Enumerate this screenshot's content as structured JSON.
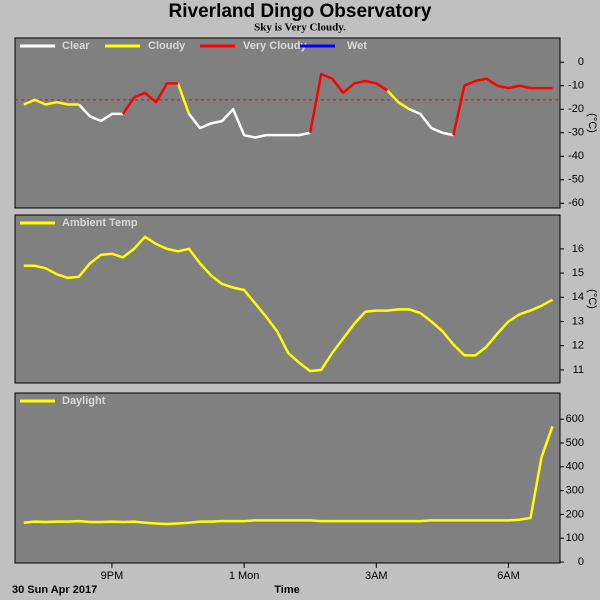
{
  "header": {
    "title": "Riverland Dingo Observatory",
    "subtitle": "Sky is Very Cloudy."
  },
  "footer": {
    "date": "30 Sun Apr 2017",
    "x_label": "Time"
  },
  "chart_data": [
    {
      "type": "line",
      "ylabel": "(°C)",
      "x": [
        19.0,
        19.25,
        19.5,
        19.75,
        20.0,
        20.25,
        20.5,
        20.75,
        21.0,
        21.25,
        21.5,
        21.75,
        22.0,
        22.25,
        22.5,
        22.75,
        23.0,
        23.25,
        23.5,
        23.75,
        24.0,
        24.25,
        24.5,
        24.75,
        25.0,
        25.25,
        25.5,
        25.75,
        26.0,
        26.25,
        26.5,
        26.75,
        27.0,
        27.25,
        27.5,
        27.75,
        28.0,
        28.25,
        28.5,
        28.75,
        29.0,
        29.25,
        29.5,
        29.75,
        30.0,
        30.25,
        30.5,
        30.75,
        31.0
      ],
      "xlim": [
        18.8,
        31.17
      ],
      "ylim": [
        -62,
        10.3
      ],
      "yticks": [
        0,
        -10,
        -20,
        -30,
        -40,
        -50,
        -60
      ],
      "threshold": {
        "value": -16,
        "color": "#ff0000"
      },
      "series": [
        {
          "name": "Clear",
          "color": "#ffffff",
          "values": [
            null,
            null,
            null,
            null,
            null,
            -18,
            -23,
            -25,
            -22,
            -22,
            null,
            null,
            null,
            null,
            null,
            -22,
            -28,
            -26,
            -25,
            -20,
            -31,
            -32,
            -31,
            -31,
            -31,
            -31,
            -30,
            null,
            null,
            null,
            null,
            null,
            null,
            null,
            null,
            -20,
            -22,
            -28,
            -30,
            -31,
            null,
            null,
            null,
            null,
            null,
            null,
            null,
            null,
            null
          ]
        },
        {
          "name": "Cloudy",
          "color": "#ffff00",
          "values": [
            -18,
            -16,
            -18,
            -17,
            -18,
            -18,
            null,
            null,
            null,
            null,
            null,
            null,
            null,
            null,
            -9,
            -22,
            null,
            null,
            null,
            null,
            null,
            null,
            null,
            null,
            null,
            null,
            null,
            null,
            null,
            null,
            null,
            null,
            null,
            -12,
            -17,
            -20,
            null,
            null,
            null,
            null,
            null,
            null,
            null,
            null,
            null,
            null,
            null,
            null,
            null
          ]
        },
        {
          "name": "Very Cloudy",
          "color": "#ff0000",
          "values": [
            null,
            null,
            null,
            null,
            null,
            null,
            null,
            null,
            null,
            -22,
            -15,
            -13,
            -17,
            -9,
            -9,
            null,
            null,
            null,
            null,
            null,
            null,
            null,
            null,
            null,
            null,
            null,
            -30,
            -5,
            -7,
            -13,
            -9,
            -8,
            -9,
            -12,
            null,
            null,
            null,
            null,
            null,
            -31,
            -10,
            -8,
            -7,
            -10,
            -11,
            -10,
            -11,
            -11,
            -11
          ]
        },
        {
          "name": "Wet",
          "color": "#0000ff",
          "values": [
            null,
            null,
            null,
            null,
            null,
            null,
            null,
            null,
            null,
            null,
            null,
            null,
            null,
            null,
            null,
            null,
            null,
            null,
            null,
            null,
            null,
            null,
            null,
            null,
            null,
            null,
            null,
            null,
            null,
            null,
            null,
            null,
            null,
            null,
            null,
            null,
            null,
            null,
            null,
            null,
            null,
            null,
            null,
            null,
            null,
            null,
            null,
            null,
            null
          ]
        }
      ]
    },
    {
      "type": "line",
      "ylabel": "(°C)",
      "x": [
        19.0,
        19.25,
        19.5,
        19.75,
        20.0,
        20.25,
        20.5,
        20.75,
        21.0,
        21.25,
        21.5,
        21.75,
        22.0,
        22.25,
        22.5,
        22.75,
        23.0,
        23.25,
        23.5,
        23.75,
        24.0,
        24.25,
        24.5,
        24.75,
        25.0,
        25.25,
        25.5,
        25.75,
        26.0,
        26.25,
        26.5,
        26.75,
        27.0,
        27.25,
        27.5,
        27.75,
        28.0,
        28.25,
        28.5,
        28.75,
        29.0,
        29.25,
        29.5,
        29.75,
        30.0,
        30.25,
        30.5,
        30.75,
        31.0
      ],
      "xlim": [
        18.8,
        31.17
      ],
      "ylim": [
        10.46,
        17.4
      ],
      "yticks": [
        16,
        15,
        14,
        13,
        12,
        11
      ],
      "series": [
        {
          "name": "Ambient Temp",
          "color": "#ffff00",
          "values": [
            15.3,
            15.3,
            15.2,
            14.95,
            14.8,
            14.85,
            15.4,
            15.75,
            15.8,
            15.65,
            16.0,
            16.5,
            16.2,
            16.0,
            15.9,
            16.0,
            15.4,
            14.9,
            14.55,
            14.4,
            14.3,
            13.75,
            13.2,
            12.6,
            11.7,
            11.3,
            10.95,
            11.0,
            11.7,
            12.3,
            12.9,
            13.4,
            13.45,
            13.45,
            13.5,
            13.5,
            13.35,
            13.0,
            12.6,
            12.05,
            11.6,
            11.6,
            11.95,
            12.5,
            13.0,
            13.3,
            13.45,
            13.65,
            13.9
          ]
        }
      ]
    },
    {
      "type": "line",
      "x": [
        19.0,
        19.25,
        19.5,
        19.75,
        20.0,
        20.25,
        20.5,
        20.75,
        21.0,
        21.25,
        21.5,
        21.75,
        22.0,
        22.25,
        22.5,
        22.75,
        23.0,
        23.25,
        23.5,
        23.75,
        24.0,
        24.25,
        24.5,
        24.75,
        25.0,
        25.25,
        25.5,
        25.75,
        26.0,
        26.25,
        26.5,
        26.75,
        27.0,
        27.25,
        27.5,
        27.75,
        28.0,
        28.25,
        28.5,
        28.75,
        29.0,
        29.25,
        29.5,
        29.75,
        30.0,
        30.25,
        30.5,
        30.75,
        31.0
      ],
      "xlim": [
        18.8,
        31.17
      ],
      "ylim": [
        -4,
        710
      ],
      "yticks": [
        600,
        500,
        400,
        300,
        200,
        100,
        0
      ],
      "xticks": [
        {
          "value": 21,
          "label": "9PM"
        },
        {
          "value": 24,
          "label": "1 Mon"
        },
        {
          "value": 27,
          "label": "3AM"
        },
        {
          "value": 30,
          "label": "6AM"
        }
      ],
      "series": [
        {
          "name": "Daylight",
          "color": "#ffff00",
          "values": [
            165,
            170,
            168,
            170,
            170,
            172,
            168,
            168,
            170,
            168,
            170,
            165,
            162,
            160,
            162,
            165,
            170,
            170,
            172,
            172,
            172,
            175,
            175,
            175,
            175,
            175,
            175,
            172,
            172,
            172,
            172,
            172,
            172,
            172,
            172,
            172,
            172,
            175,
            175,
            175,
            175,
            175,
            175,
            175,
            175,
            178,
            185,
            440,
            570
          ]
        }
      ]
    }
  ]
}
